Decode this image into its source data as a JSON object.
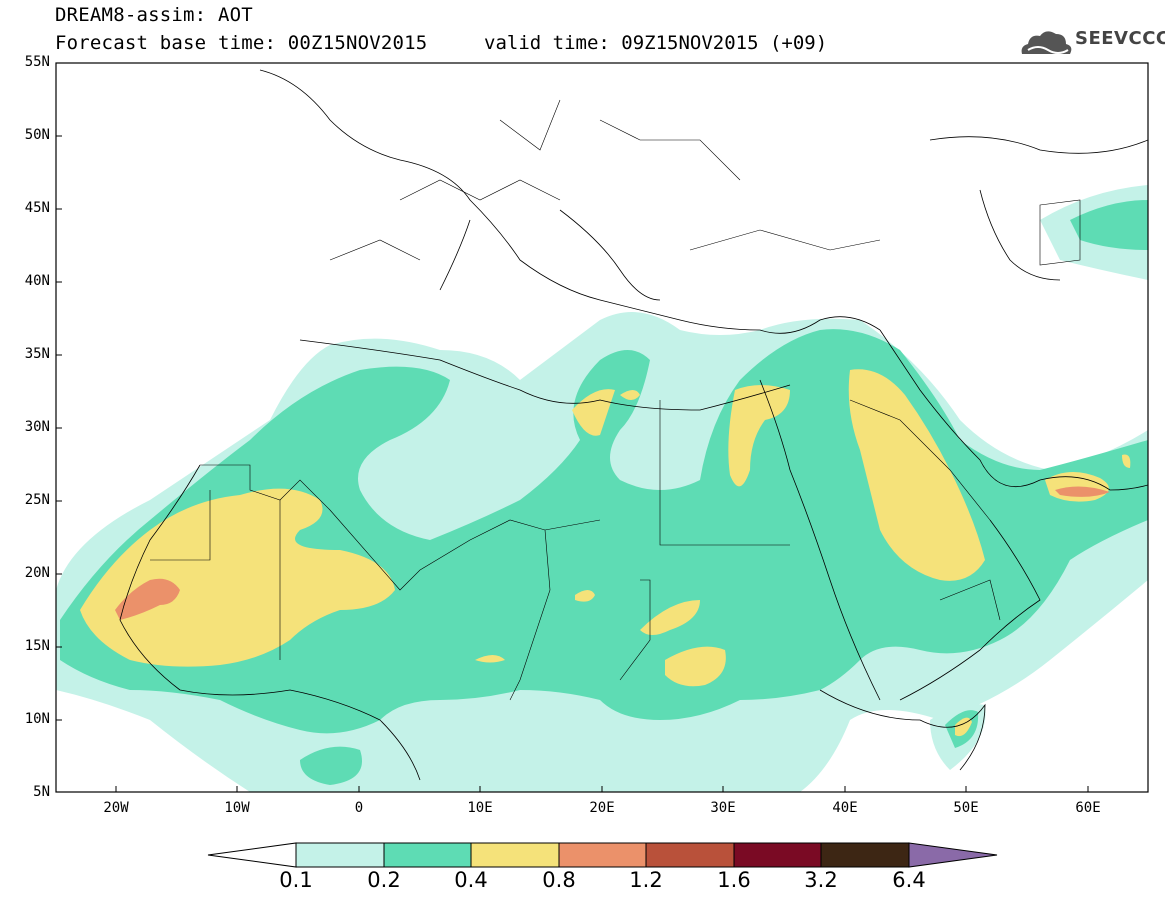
{
  "header": {
    "title": "DREAM8-assim: AOT",
    "forecast": "Forecast base time: 00Z15NOV2015",
    "valid": "valid time: 09Z15NOV2015 (+09)",
    "logo_text": "SEEVCCC"
  },
  "map": {
    "lat_labels": [
      "55N",
      "50N",
      "45N",
      "40N",
      "35N",
      "30N",
      "25N",
      "20N",
      "15N",
      "10N",
      "5N"
    ],
    "lon_labels": [
      "20W",
      "10W",
      "0",
      "10E",
      "20E",
      "30E",
      "40E",
      "50E",
      "60E"
    ]
  },
  "legend": {
    "thresholds": [
      "0.1",
      "0.2",
      "0.4",
      "0.8",
      "1.2",
      "1.6",
      "3.2",
      "6.4"
    ],
    "colors": [
      "#ffffff",
      "#c4f2e8",
      "#5edcb4",
      "#f5e27a",
      "#eb916a",
      "#b9513a",
      "#7a0a24",
      "#3d2614",
      "#8a6aa8"
    ]
  }
}
